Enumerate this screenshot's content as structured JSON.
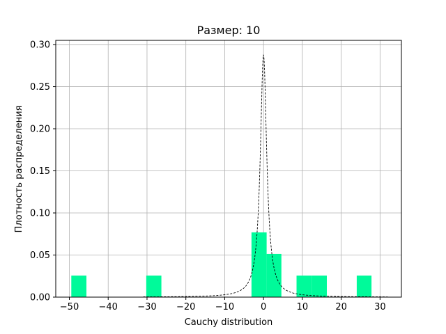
{
  "chart_data": {
    "type": "bar",
    "title": "Размер: 10",
    "xlabel": "Cauchy distribution",
    "ylabel": "Плотность распределения",
    "xlim": [
      -53.5,
      35.5
    ],
    "ylim": [
      0,
      0.305
    ],
    "xticks": [
      -50,
      -40,
      -30,
      -20,
      -10,
      0,
      10,
      20,
      30
    ],
    "xtick_labels": [
      "−50",
      "−40",
      "−30",
      "−20",
      "−10",
      "0",
      "10",
      "20",
      "30"
    ],
    "yticks": [
      0.0,
      0.05,
      0.1,
      0.15,
      0.2,
      0.25,
      0.3
    ],
    "ytick_labels": [
      "0.00",
      "0.05",
      "0.10",
      "0.15",
      "0.20",
      "0.25",
      "0.30"
    ],
    "grid": true,
    "histogram": {
      "color": "#00fa9a",
      "bins": [
        {
          "x0": -49.5,
          "x1": -45.6,
          "value": 0.0256
        },
        {
          "x0": -30.2,
          "x1": -26.3,
          "value": 0.0256
        },
        {
          "x0": -3.1,
          "x1": 0.8,
          "value": 0.0769
        },
        {
          "x0": 0.8,
          "x1": 4.6,
          "value": 0.0513
        },
        {
          "x0": 8.5,
          "x1": 12.4,
          "value": 0.0256
        },
        {
          "x0": 12.4,
          "x1": 16.3,
          "value": 0.0256
        },
        {
          "x0": 24.0,
          "x1": 27.8,
          "value": 0.0256
        }
      ]
    },
    "density_curve": {
      "style": "dashed",
      "color": "#000000",
      "distribution": "cauchy",
      "x_range": [
        -31,
        32
      ]
    }
  }
}
